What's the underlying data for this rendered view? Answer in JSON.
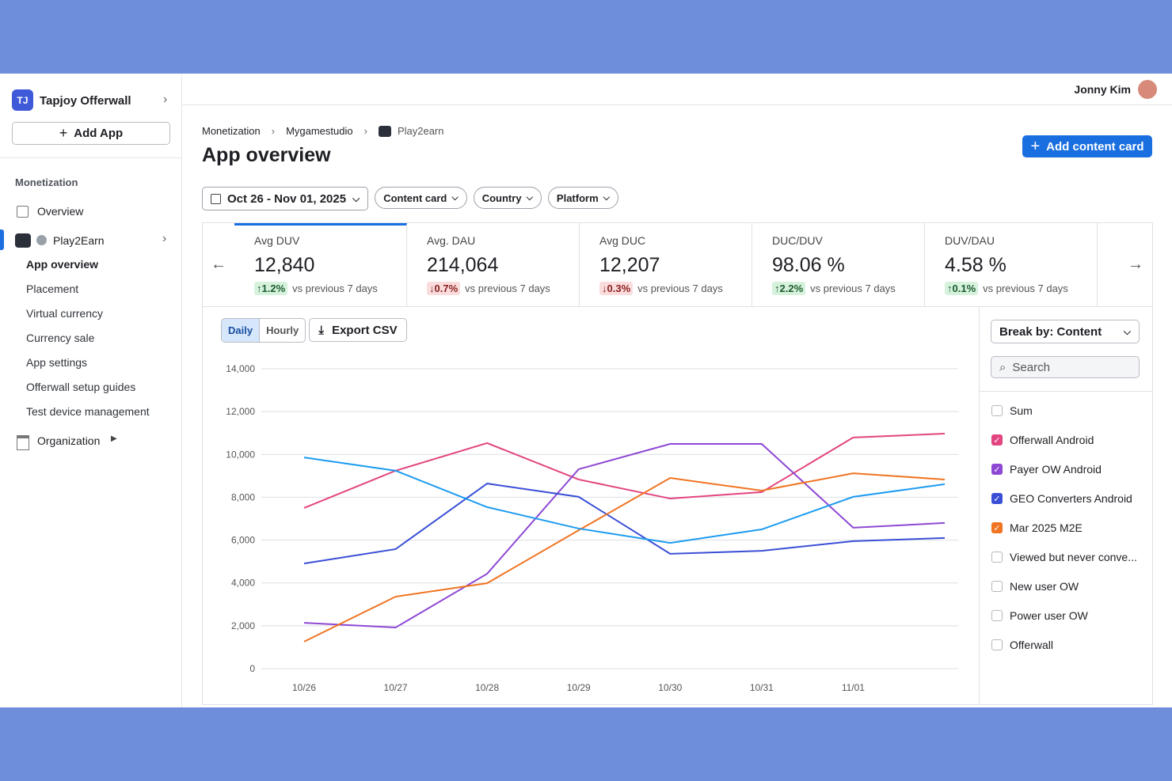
{
  "sidebar": {
    "badge": "TJ",
    "org": "Tapjoy Offerwall",
    "add_app": "Add App",
    "section": "Monetization",
    "overview": "Overview",
    "app": "Play2Earn",
    "items": [
      "App overview",
      "Placement",
      "Virtual currency",
      "Currency sale",
      "App settings",
      "Offerwall setup guides",
      "Test device management"
    ],
    "organization": "Organization"
  },
  "header": {
    "user": "Jonny Kim"
  },
  "breadcrumb": [
    "Monetization",
    "Mygamestudio",
    "Play2earn"
  ],
  "title": "App overview",
  "add_card": "Add content card",
  "filters": {
    "date": "Oct 26 - Nov 01, 2025",
    "others": [
      "Content card",
      "Country",
      "Platform"
    ]
  },
  "kpis": [
    {
      "label": "Avg DUV",
      "value": "12,840",
      "change": "↑1.2%",
      "trend": "up",
      "note": "vs previous 7 days"
    },
    {
      "label": "Avg. DAU",
      "value": "214,064",
      "change": "↓0.7%",
      "trend": "down",
      "note": "vs previous 7 days"
    },
    {
      "label": "Avg DUC",
      "value": "12,207",
      "change": "↓0.3%",
      "trend": "down",
      "note": "vs previous 7 days"
    },
    {
      "label": "DUC/DUV",
      "value": "98.06 %",
      "change": "↑2.2%",
      "trend": "up",
      "note": "vs previous 7 days"
    },
    {
      "label": "DUV/DAU",
      "value": "4.58 %",
      "change": "↑0.1%",
      "trend": "up",
      "note": "vs previous 7 days"
    }
  ],
  "toggle": [
    "Daily",
    "Hourly"
  ],
  "export": "Export CSV",
  "break_by": "Break by: Content",
  "search": "Search",
  "chart_data": {
    "type": "line",
    "categories": [
      "10/26",
      "10/27",
      "10/28",
      "10/29",
      "10/30",
      "10/31",
      "11/01",
      null
    ],
    "series": [
      {
        "color": "#e2457f",
        "values": [
          7500,
          9240,
          10530,
          8830,
          7940,
          8240,
          10790,
          10970
        ]
      },
      {
        "color": "#8e48d4",
        "values": [
          2140,
          1920,
          4430,
          9310,
          10490,
          10490,
          6580,
          6800
        ]
      },
      {
        "color": "#3a4fd6",
        "values": [
          4910,
          5580,
          8640,
          8020,
          5360,
          5500,
          5950,
          6100
        ]
      },
      {
        "color": "#f07422",
        "values": [
          1260,
          3360,
          3990,
          6460,
          8900,
          8310,
          9120,
          8830
        ]
      },
      {
        "color": "#1d9bf0",
        "values": [
          9860,
          9240,
          7540,
          6540,
          5870,
          6500,
          8020,
          8610
        ]
      }
    ],
    "ylim": [
      0,
      14000
    ],
    "yticks": [
      0,
      {
        "value": 2000,
        "label": "2,000"
      },
      {
        "value": 4000,
        "label": "4,000"
      },
      {
        "value": 6000,
        "label": "6,000"
      },
      {
        "value": 8000,
        "label": "8,000"
      },
      {
        "value": 10000,
        "label": "10,000"
      },
      {
        "value": 12000,
        "label": "12,000"
      },
      {
        "value": 14000,
        "label": "14,000"
      }
    ],
    "grid": true,
    "legend_items": [
      {
        "label": "Sum",
        "checked": false
      },
      {
        "label": "Offerwall Android",
        "checked": true
      },
      {
        "label": "Payer OW Android",
        "checked": true
      },
      {
        "label": "GEO Converters Android",
        "checked": true
      },
      {
        "label": "Mar 2025 M2E",
        "checked": true
      },
      {
        "label": "Viewed but never conve...",
        "checked": false
      },
      {
        "label": "New user OW",
        "checked": false
      },
      {
        "label": "Power user OW",
        "checked": false
      },
      {
        "label": "Offerwall",
        "checked": false
      }
    ]
  }
}
